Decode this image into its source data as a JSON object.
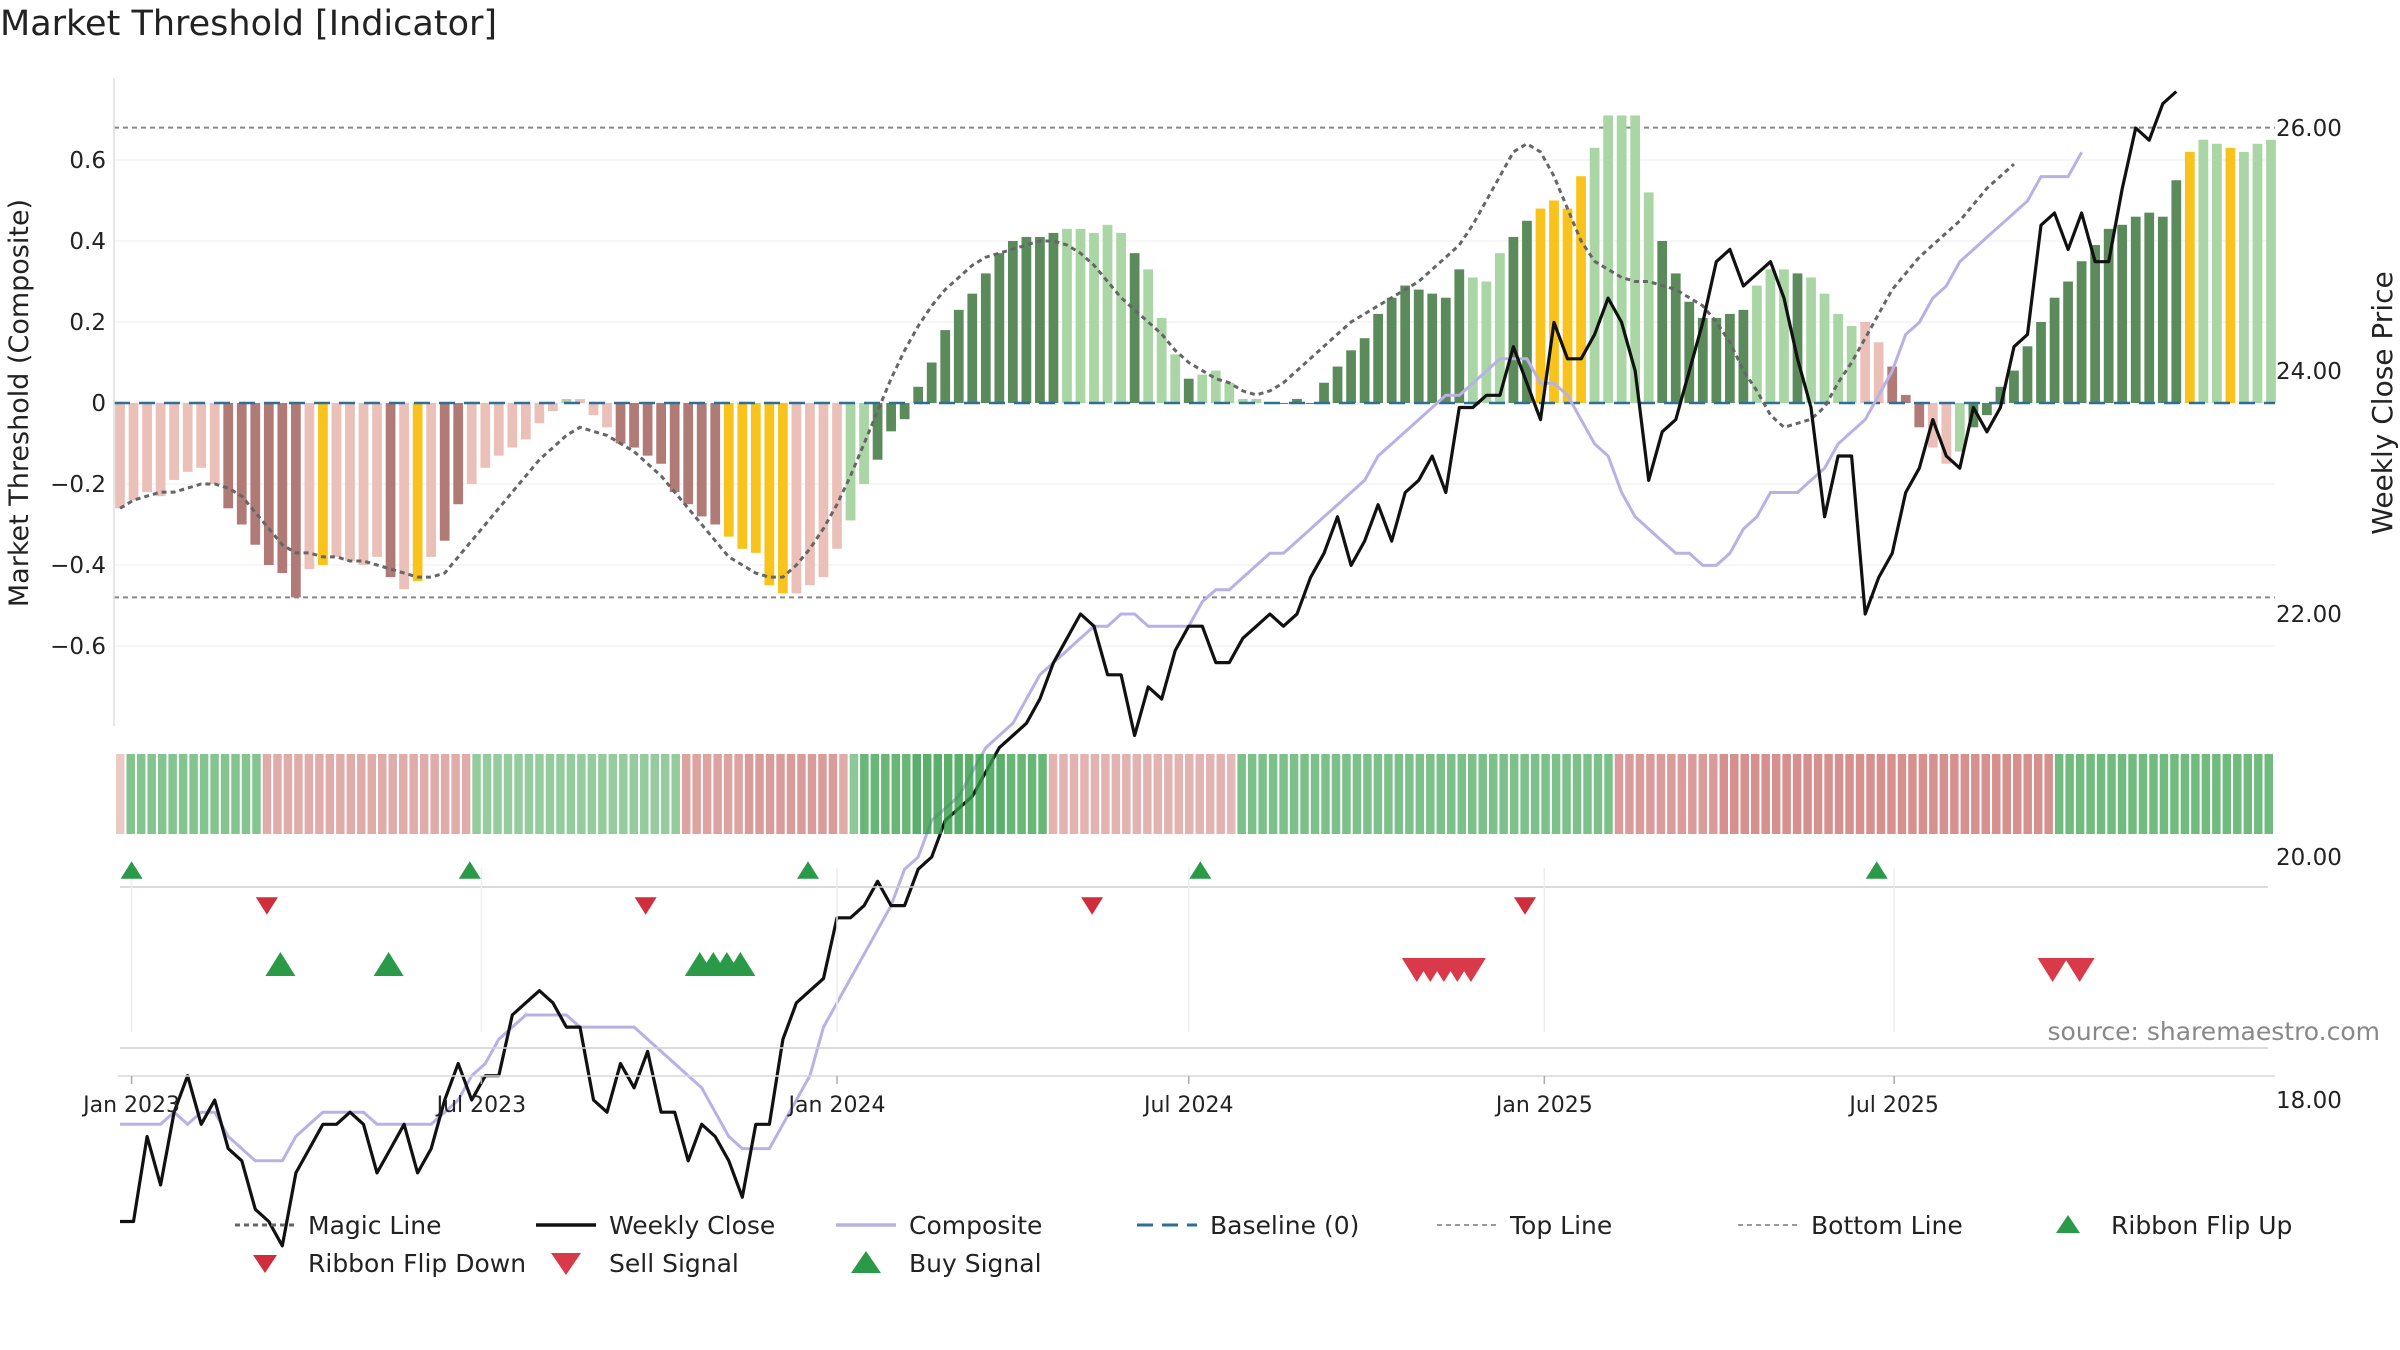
{
  "page": {
    "title": "Market Threshold [Indicator]"
  },
  "axes": {
    "left_label": "Market Threshold (Composite)",
    "right_label": "Weekly Close Price",
    "left_ticks": [
      {
        "v": 0.6,
        "label": "0.6"
      },
      {
        "v": 0.4,
        "label": "0.4"
      },
      {
        "v": 0.2,
        "label": "0.2"
      },
      {
        "v": 0,
        "label": "0"
      },
      {
        "v": -0.2,
        "label": "−0.2"
      },
      {
        "v": -0.4,
        "label": "−0.4"
      },
      {
        "v": -0.6,
        "label": "−0.6"
      }
    ],
    "right_ticks": [
      {
        "v": 26,
        "label": "26.00"
      },
      {
        "v": 24,
        "label": "24.00"
      },
      {
        "v": 22,
        "label": "22.00"
      },
      {
        "v": 20,
        "label": "20.00"
      },
      {
        "v": 18,
        "label": "18.00"
      }
    ],
    "x_ticks": [
      {
        "date": "2023-01-01",
        "label": "Jan 2023"
      },
      {
        "date": "2023-07-01",
        "label": "Jul 2023"
      },
      {
        "date": "2024-01-01",
        "label": "Jan 2024"
      },
      {
        "date": "2024-07-01",
        "label": "Jul 2024"
      },
      {
        "date": "2025-01-01",
        "label": "Jan 2025"
      },
      {
        "date": "2025-07-01",
        "label": "Jul 2025"
      }
    ]
  },
  "source_note": "source: sharemaestro.com",
  "legend": [
    {
      "key": "magic",
      "label": "Magic Line"
    },
    {
      "key": "close",
      "label": "Weekly Close"
    },
    {
      "key": "composite",
      "label": "Composite"
    },
    {
      "key": "baseline",
      "label": "Baseline (0)"
    },
    {
      "key": "top",
      "label": "Top Line"
    },
    {
      "key": "bottom",
      "label": "Bottom Line"
    },
    {
      "key": "flipup",
      "label": "Ribbon Flip Up"
    },
    {
      "key": "flipdown",
      "label": "Ribbon Flip Down"
    },
    {
      "key": "sell",
      "label": "Sell Signal"
    },
    {
      "key": "buy",
      "label": "Buy Signal"
    }
  ],
  "colors": {
    "strong_pos": "#5b8a5b",
    "weak_pos": "#a9d6a4",
    "strong_neg": "#b07a76",
    "weak_neg": "#eac0b8",
    "extreme": "#f7c31c",
    "close": "#111111",
    "composite": "#b9b1e6",
    "magic": "#666666",
    "baseline": "#2e6f96",
    "buy": "#2a9a48",
    "sell": "#d93a4a",
    "flip_up": "#2a9a48",
    "flip_down": "#cf2e3c"
  },
  "chart_data": {
    "type": "bar",
    "start_date": "2022-12-26",
    "interval_days": 7,
    "composite_bars": [
      -0.26,
      -0.24,
      -0.22,
      -0.23,
      -0.19,
      -0.17,
      -0.16,
      -0.2,
      -0.26,
      -0.3,
      -0.35,
      -0.4,
      -0.42,
      -0.48,
      -0.41,
      -0.4,
      -0.38,
      -0.39,
      -0.4,
      -0.38,
      -0.43,
      -0.46,
      -0.44,
      -0.38,
      -0.34,
      -0.25,
      -0.2,
      -0.16,
      -0.13,
      -0.11,
      -0.09,
      -0.05,
      -0.02,
      0.01,
      0.01,
      -0.03,
      -0.06,
      -0.1,
      -0.11,
      -0.13,
      -0.15,
      -0.22,
      -0.25,
      -0.28,
      -0.3,
      -0.33,
      -0.36,
      -0.37,
      -0.45,
      -0.47,
      -0.47,
      -0.45,
      -0.43,
      -0.36,
      -0.29,
      -0.2,
      -0.14,
      -0.07,
      -0.04,
      0.04,
      0.1,
      0.18,
      0.23,
      0.27,
      0.32,
      0.37,
      0.4,
      0.41,
      0.41,
      0.42,
      0.43,
      0.43,
      0.42,
      0.44,
      0.42,
      0.37,
      0.33,
      0.21,
      0.12,
      0.06,
      0.07,
      0.08,
      0.05,
      0.01,
      0.01,
      0.0,
      0.0,
      0.01,
      0.0,
      0.05,
      0.09,
      0.13,
      0.16,
      0.22,
      0.26,
      0.29,
      0.28,
      0.27,
      0.26,
      0.33,
      0.31,
      0.3,
      0.37,
      0.41,
      0.45,
      0.48,
      0.5,
      0.48,
      0.56,
      0.63,
      0.71,
      0.71,
      0.71,
      0.52,
      0.4,
      0.32,
      0.25,
      0.21,
      0.21,
      0.22,
      0.23,
      0.29,
      0.33,
      0.33,
      0.32,
      0.31,
      0.27,
      0.22,
      0.19,
      0.2,
      0.15,
      0.09,
      0.02,
      -0.06,
      -0.11,
      -0.15,
      -0.12,
      -0.06,
      -0.03,
      0.04,
      0.08,
      0.14,
      0.2,
      0.26,
      0.3,
      0.35,
      0.39,
      0.43,
      0.44,
      0.46,
      0.47,
      0.46,
      0.55,
      0.62,
      0.65,
      0.64,
      0.63,
      0.62,
      0.64,
      0.65
    ],
    "bar_colors": "nnnnnnnnNNNNNNnEnnnnNnEnNNnnnnnnnpnnnNNNNNNNNEEEEEnnnnppPPPPPPPPPPPPPPpppppPpppPpppppPPPPPPPPPPPPPPPpppPPEEEEpppppPPPPPPPpppPppppnnNNNnnpPPPPPPPPPPPPPPPPEppE",
    "weekly_close": [
      17.0,
      17.0,
      17.7,
      17.3,
      17.9,
      18.2,
      17.8,
      18.0,
      17.6,
      17.5,
      17.1,
      17.0,
      16.8,
      17.4,
      17.6,
      17.8,
      17.8,
      17.9,
      17.8,
      17.4,
      17.6,
      17.8,
      17.4,
      17.6,
      18.0,
      18.3,
      18.0,
      18.2,
      18.2,
      18.7,
      18.8,
      18.9,
      18.8,
      18.6,
      18.6,
      18.0,
      17.9,
      18.3,
      18.1,
      18.4,
      17.9,
      17.9,
      17.5,
      17.8,
      17.7,
      17.5,
      17.2,
      17.8,
      17.8,
      18.5,
      18.8,
      18.9,
      19.0,
      19.5,
      19.5,
      19.6,
      19.8,
      19.6,
      19.6,
      19.9,
      20.0,
      20.3,
      20.4,
      20.5,
      20.7,
      20.9,
      21.0,
      21.1,
      21.3,
      21.6,
      21.8,
      22.0,
      21.9,
      21.5,
      21.5,
      21.0,
      21.4,
      21.3,
      21.7,
      21.9,
      21.9,
      21.6,
      21.6,
      21.8,
      21.9,
      22.0,
      21.9,
      22.0,
      22.3,
      22.5,
      22.8,
      22.4,
      22.6,
      22.9,
      22.6,
      23.0,
      23.1,
      23.3,
      23.0,
      23.7,
      23.7,
      23.8,
      23.8,
      24.2,
      23.9,
      23.6,
      24.4,
      24.1,
      24.1,
      24.3,
      24.6,
      24.4,
      24.0,
      23.1,
      23.5,
      23.6,
      24.0,
      24.4,
      24.9,
      25.0,
      24.7,
      24.8,
      24.9,
      24.6,
      24.1,
      23.7,
      22.8,
      23.3,
      23.3,
      22.0,
      22.3,
      22.5,
      23.0,
      23.2,
      23.6,
      23.3,
      23.2,
      23.7,
      23.5,
      23.7,
      24.2,
      24.3,
      25.2,
      25.3,
      25.0,
      25.3,
      24.9,
      24.9,
      25.5,
      26.0,
      25.9,
      26.2,
      26.3
    ],
    "composite_line": [
      17.8,
      17.8,
      17.8,
      17.8,
      17.9,
      17.8,
      17.9,
      17.9,
      17.7,
      17.6,
      17.5,
      17.5,
      17.5,
      17.7,
      17.8,
      17.9,
      17.9,
      17.9,
      17.9,
      17.8,
      17.8,
      17.8,
      17.8,
      17.8,
      17.9,
      18.0,
      18.2,
      18.3,
      18.5,
      18.6,
      18.7,
      18.7,
      18.7,
      18.7,
      18.6,
      18.6,
      18.6,
      18.6,
      18.6,
      18.5,
      18.4,
      18.3,
      18.2,
      18.1,
      17.9,
      17.7,
      17.6,
      17.6,
      17.6,
      17.8,
      18.0,
      18.2,
      18.6,
      18.8,
      19.0,
      19.2,
      19.4,
      19.6,
      19.9,
      20.0,
      20.3,
      20.4,
      20.5,
      20.7,
      20.9,
      21.0,
      21.1,
      21.3,
      21.5,
      21.6,
      21.7,
      21.8,
      21.9,
      21.9,
      22.0,
      22.0,
      21.9,
      21.9,
      21.9,
      21.9,
      22.1,
      22.2,
      22.2,
      22.3,
      22.4,
      22.5,
      22.5,
      22.6,
      22.7,
      22.8,
      22.9,
      23.0,
      23.1,
      23.3,
      23.4,
      23.5,
      23.6,
      23.7,
      23.8,
      23.8,
      23.9,
      24.0,
      24.1,
      24.1,
      24.1,
      23.9,
      23.9,
      23.8,
      23.6,
      23.4,
      23.3,
      23.0,
      22.8,
      22.7,
      22.6,
      22.5,
      22.5,
      22.4,
      22.4,
      22.5,
      22.7,
      22.8,
      23.0,
      23.0,
      23.0,
      23.1,
      23.2,
      23.4,
      23.5,
      23.6,
      23.8,
      24.0,
      24.3,
      24.4,
      24.6,
      24.7,
      24.9,
      25.0,
      25.1,
      25.2,
      25.3,
      25.4,
      25.6,
      25.6,
      25.6,
      25.8
    ],
    "magic_line": [
      -0.26,
      -0.24,
      -0.23,
      -0.22,
      -0.22,
      -0.21,
      -0.2,
      -0.2,
      -0.21,
      -0.23,
      -0.27,
      -0.31,
      -0.35,
      -0.37,
      -0.37,
      -0.38,
      -0.38,
      -0.39,
      -0.39,
      -0.4,
      -0.41,
      -0.42,
      -0.43,
      -0.43,
      -0.42,
      -0.38,
      -0.34,
      -0.3,
      -0.26,
      -0.22,
      -0.18,
      -0.14,
      -0.11,
      -0.08,
      -0.06,
      -0.07,
      -0.08,
      -0.1,
      -0.12,
      -0.15,
      -0.18,
      -0.22,
      -0.26,
      -0.3,
      -0.34,
      -0.38,
      -0.4,
      -0.42,
      -0.43,
      -0.43,
      -0.4,
      -0.36,
      -0.31,
      -0.25,
      -0.18,
      -0.1,
      -0.02,
      0.06,
      0.13,
      0.19,
      0.24,
      0.28,
      0.31,
      0.34,
      0.36,
      0.37,
      0.38,
      0.39,
      0.4,
      0.4,
      0.39,
      0.37,
      0.34,
      0.3,
      0.26,
      0.23,
      0.2,
      0.17,
      0.13,
      0.1,
      0.08,
      0.06,
      0.05,
      0.03,
      0.02,
      0.03,
      0.05,
      0.08,
      0.11,
      0.14,
      0.17,
      0.2,
      0.22,
      0.24,
      0.26,
      0.28,
      0.3,
      0.33,
      0.36,
      0.39,
      0.44,
      0.5,
      0.56,
      0.62,
      0.64,
      0.62,
      0.56,
      0.48,
      0.4,
      0.35,
      0.33,
      0.31,
      0.3,
      0.3,
      0.29,
      0.28,
      0.26,
      0.24,
      0.2,
      0.15,
      0.08,
      0.03,
      -0.03,
      -0.06,
      -0.05,
      -0.04,
      -0.01,
      0.05,
      0.1,
      0.16,
      0.22,
      0.28,
      0.32,
      0.36,
      0.39,
      0.42,
      0.45,
      0.49,
      0.53,
      0.56,
      0.59
    ],
    "baseline": 0,
    "top_line": 0.68,
    "bottom_line": -0.48,
    "left_ylim": [
      -0.8,
      0.8
    ],
    "right_ylim": [
      16.2,
      27.0
    ],
    "ribbon_strength": [
      -0.2,
      0.52,
      0.52,
      0.52,
      0.52,
      0.52,
      0.52,
      0.52,
      0.52,
      0.52,
      0.52,
      0.52,
      0.52,
      0.52,
      -0.45,
      -0.45,
      -0.45,
      -0.45,
      -0.45,
      -0.45,
      -0.45,
      -0.45,
      -0.45,
      -0.45,
      -0.45,
      -0.45,
      -0.45,
      -0.45,
      -0.45,
      -0.45,
      -0.45,
      -0.45,
      -0.45,
      -0.45,
      0.4,
      0.4,
      0.4,
      0.4,
      0.4,
      0.4,
      0.4,
      0.4,
      0.4,
      0.4,
      0.4,
      0.4,
      0.4,
      0.4,
      0.4,
      0.4,
      0.4,
      0.4,
      0.4,
      0.4,
      -0.55,
      -0.55,
      -0.55,
      -0.55,
      -0.55,
      -0.55,
      -0.6,
      -0.6,
      -0.6,
      -0.6,
      -0.6,
      -0.6,
      -0.6,
      -0.6,
      -0.6,
      -0.45,
      0.45,
      0.7,
      0.7,
      0.7,
      0.7,
      0.7,
      0.8,
      0.8,
      0.8,
      0.8,
      0.8,
      0.8,
      0.8,
      0.8,
      0.8,
      0.7,
      0.7,
      0.7,
      0.7,
      -0.4,
      -0.4,
      -0.4,
      -0.4,
      -0.4,
      -0.4,
      -0.4,
      -0.4,
      -0.4,
      -0.4,
      -0.4,
      -0.4,
      -0.4,
      -0.4,
      -0.4,
      -0.4,
      -0.4,
      -0.35,
      0.55,
      0.55,
      0.55,
      0.55,
      0.55,
      0.55,
      0.55,
      0.55,
      0.55,
      0.55,
      0.55,
      0.55,
      0.55,
      0.55,
      0.55,
      0.55,
      0.55,
      0.55,
      0.55,
      0.55,
      0.55,
      0.55,
      0.55,
      0.55,
      0.55,
      0.55,
      0.55,
      0.55,
      0.55,
      0.55,
      0.55,
      0.55,
      0.55,
      0.55,
      0.55,
      0.55,
      -0.6,
      -0.6,
      -0.6,
      -0.6,
      -0.6,
      -0.6,
      -0.6,
      -0.6,
      -0.6,
      -0.6,
      -0.7,
      -0.7,
      -0.7,
      -0.7,
      -0.7,
      -0.7,
      -0.7,
      -0.7,
      -0.7,
      -0.7,
      -0.7,
      -0.7,
      -0.7,
      -0.7,
      -0.7,
      -0.7,
      -0.7,
      -0.7,
      -0.7,
      -0.7,
      -0.7,
      -0.7,
      -0.7,
      -0.7,
      -0.7,
      -0.7,
      -0.7,
      -0.7,
      -0.7,
      -0.7,
      -0.7,
      -0.7,
      0.65,
      0.65,
      0.65,
      0.65,
      0.65,
      0.65,
      0.65,
      0.65,
      0.65,
      0.65,
      0.65,
      0.65,
      0.65,
      0.65,
      0.65,
      0.65,
      0.65,
      0.65,
      0.65,
      0.65,
      0.65
    ],
    "ribbon_flip_up": [
      "2023-01-01",
      "2023-06-25",
      "2023-12-17",
      "2024-07-07",
      "2025-06-22"
    ],
    "ribbon_flip_down": [
      "2023-03-12",
      "2023-09-24",
      "2024-05-12",
      "2024-12-22"
    ],
    "buy_signals": [
      "2023-03-19",
      "2023-05-14",
      "2023-10-22",
      "2023-10-29",
      "2023-11-05",
      "2023-11-12"
    ],
    "sell_signals": [
      "2024-10-27",
      "2024-11-03",
      "2024-11-10",
      "2024-11-17",
      "2024-11-24",
      "2025-09-21",
      "2025-10-05"
    ]
  }
}
